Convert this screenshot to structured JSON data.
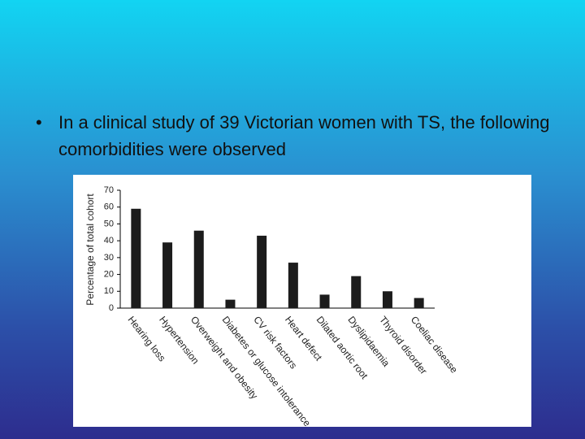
{
  "slide": {
    "bullet": "In a clinical study of 39 Victorian women with TS, the following comorbidities were observed"
  },
  "chart_data": {
    "type": "bar",
    "ylabel": "Percentage of total cohort",
    "categories": [
      "Hearing loss",
      "Hypertension",
      "Overweight and obesity",
      "Diabetes or glucose intolerance",
      "CV risk factors",
      "Heart defect",
      "Dilated aortic root",
      "Dyslipidaemia",
      "Thyroid disorder",
      "Coeliac disease"
    ],
    "values": [
      59,
      39,
      46,
      5,
      43,
      27,
      8,
      19,
      10,
      6
    ],
    "color": "#1c1c1c",
    "ylim": [
      0,
      70
    ],
    "yticks": [
      0,
      10,
      20,
      30,
      40,
      50,
      60,
      70
    ],
    "grid": false
  }
}
